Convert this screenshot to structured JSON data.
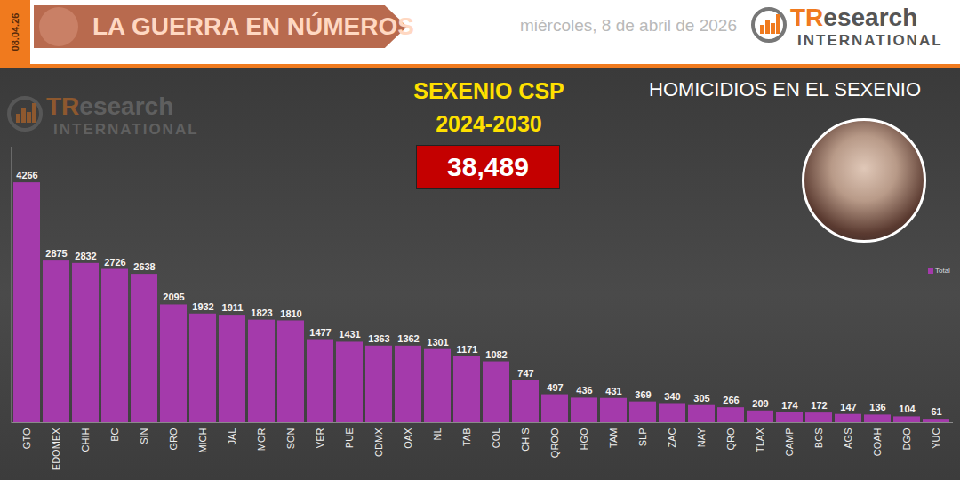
{
  "header": {
    "date_tag": "08.04.26",
    "banner": "LA GUERRA EN NÚMEROS",
    "date": "miércoles, 8 de abril de 2026",
    "logo": {
      "name": "TResearch",
      "sub": "INTERNATIONAL"
    }
  },
  "chart_data": {
    "type": "bar",
    "title": "HOMICIDIOS EN EL SEXENIO",
    "subtitle": [
      "SEXENIO CSP",
      "2024-2030"
    ],
    "total": "38,489",
    "categories": [
      "GTO",
      "EDOMEX",
      "CHIH",
      "BC",
      "SIN",
      "GRO",
      "MICH",
      "JAL",
      "MOR",
      "SON",
      "VER",
      "PUE",
      "CDMX",
      "OAX",
      "NL",
      "TAB",
      "COL",
      "CHIS",
      "QROO",
      "HGO",
      "TAM",
      "SLP",
      "ZAC",
      "NAY",
      "QRO",
      "TLAX",
      "CAMP",
      "BCS",
      "AGS",
      "COAH",
      "DGO",
      "YUC"
    ],
    "series": [
      {
        "name": "Total",
        "color": "#a43aab",
        "values": [
          4266,
          2875,
          2832,
          2726,
          2638,
          2095,
          1932,
          1911,
          1823,
          1810,
          1477,
          1431,
          1363,
          1362,
          1301,
          1171,
          1082,
          747,
          497,
          436,
          431,
          369,
          340,
          305,
          266,
          209,
          174,
          172,
          147,
          136,
          104,
          61
        ]
      }
    ],
    "ylim": [
      0,
      4900
    ],
    "grid": false,
    "data_labels": true,
    "tick_labels": "x",
    "legend": "right"
  }
}
